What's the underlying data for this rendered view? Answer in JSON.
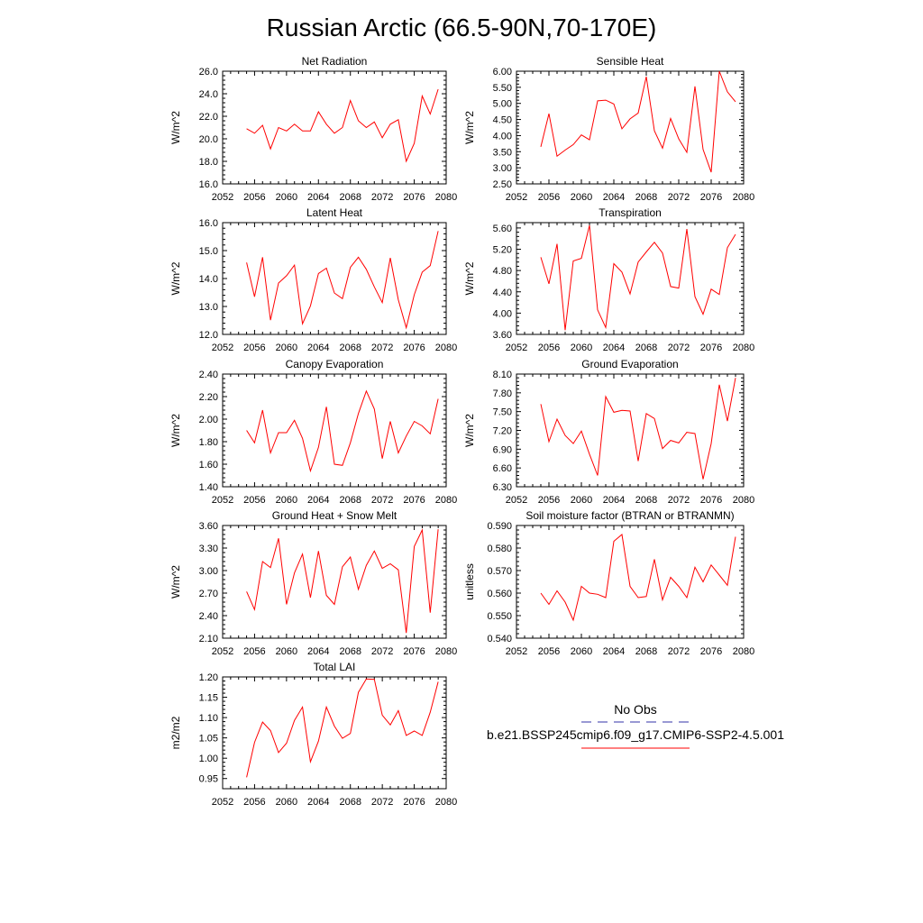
{
  "figure": {
    "title": "Russian Arctic (66.5-90N,70-170E)"
  },
  "colors": {
    "model_line": "#ff0000",
    "obs_line": "#3333aa",
    "axis": "#000000"
  },
  "legend": {
    "placement": "bottom-right",
    "entries": [
      {
        "label": "No Obs",
        "style": "dashed",
        "color": "#3333aa"
      },
      {
        "label": "b.e21.BSSP245cmip6.f09_g17.CMIP6-SSP2-4.5.001",
        "style": "solid",
        "color": "#ff0000"
      }
    ]
  },
  "chart_data": [
    {
      "type": "line",
      "title": "Net Radiation",
      "xlabel": "",
      "ylabel": "W/m^2",
      "xlim": [
        2052,
        2080
      ],
      "ylim": [
        16.0,
        26.0
      ],
      "xticks": [
        2052,
        2056,
        2060,
        2064,
        2068,
        2072,
        2076,
        2080
      ],
      "yticks": [
        16.0,
        18.0,
        20.0,
        22.0,
        24.0,
        26.0
      ],
      "ydecimals": 1,
      "x": [
        2055,
        2056,
        2057,
        2058,
        2059,
        2060,
        2061,
        2062,
        2063,
        2064,
        2065,
        2066,
        2067,
        2068,
        2069,
        2070,
        2071,
        2072,
        2073,
        2074,
        2075,
        2076,
        2077,
        2078,
        2079
      ],
      "series": [
        {
          "values": [
            20.9,
            20.5,
            21.2,
            19.1,
            21.0,
            20.7,
            21.3,
            20.7,
            20.7,
            22.4,
            21.3,
            20.5,
            21.0,
            23.4,
            21.6,
            21.0,
            21.5,
            20.1,
            21.3,
            21.7,
            18.0,
            19.6,
            23.8,
            22.2,
            24.4
          ]
        }
      ]
    },
    {
      "type": "line",
      "title": "Sensible Heat",
      "xlabel": "",
      "ylabel": "W/m^2",
      "xlim": [
        2052,
        2080
      ],
      "ylim": [
        2.5,
        6.0
      ],
      "xticks": [
        2052,
        2056,
        2060,
        2064,
        2068,
        2072,
        2076,
        2080
      ],
      "yticks": [
        2.5,
        3.0,
        3.5,
        4.0,
        4.5,
        5.0,
        5.5,
        6.0
      ],
      "ydecimals": 2,
      "x": [
        2055,
        2056,
        2057,
        2058,
        2059,
        2060,
        2061,
        2062,
        2063,
        2064,
        2065,
        2066,
        2067,
        2068,
        2069,
        2070,
        2071,
        2072,
        2073,
        2074,
        2075,
        2076,
        2077,
        2078,
        2079
      ],
      "series": [
        {
          "values": [
            3.65,
            4.68,
            3.36,
            3.55,
            3.72,
            4.02,
            3.87,
            5.08,
            5.1,
            4.98,
            4.21,
            4.52,
            4.7,
            5.83,
            4.15,
            3.61,
            4.53,
            3.9,
            3.48,
            5.53,
            3.57,
            2.86,
            6.0,
            5.36,
            5.05
          ]
        }
      ]
    },
    {
      "type": "line",
      "title": "Latent Heat",
      "xlabel": "",
      "ylabel": "W/m^2",
      "xlim": [
        2052,
        2080
      ],
      "ylim": [
        12.0,
        16.0
      ],
      "xticks": [
        2052,
        2056,
        2060,
        2064,
        2068,
        2072,
        2076,
        2080
      ],
      "yticks": [
        12.0,
        13.0,
        14.0,
        15.0,
        16.0
      ],
      "ydecimals": 1,
      "x": [
        2055,
        2056,
        2057,
        2058,
        2059,
        2060,
        2061,
        2062,
        2063,
        2064,
        2065,
        2066,
        2067,
        2068,
        2069,
        2070,
        2071,
        2072,
        2073,
        2074,
        2075,
        2076,
        2077,
        2078,
        2079
      ],
      "series": [
        {
          "values": [
            14.57,
            13.35,
            14.76,
            12.51,
            13.84,
            14.1,
            14.48,
            12.38,
            13.02,
            14.18,
            14.37,
            13.48,
            13.28,
            14.4,
            14.76,
            14.33,
            13.7,
            13.14,
            14.74,
            13.24,
            12.24,
            13.42,
            14.23,
            14.46,
            15.7
          ]
        }
      ]
    },
    {
      "type": "line",
      "title": "Transpiration",
      "xlabel": "",
      "ylabel": "W/m^2",
      "xlim": [
        2052,
        2080
      ],
      "ylim": [
        3.6,
        5.7
      ],
      "xticks": [
        2052,
        2056,
        2060,
        2064,
        2068,
        2072,
        2076,
        2080
      ],
      "yticks": [
        3.6,
        4.0,
        4.4,
        4.8,
        5.2,
        5.6
      ],
      "ydecimals": 2,
      "x": [
        2055,
        2056,
        2057,
        2058,
        2059,
        2060,
        2061,
        2062,
        2063,
        2064,
        2065,
        2066,
        2067,
        2068,
        2069,
        2070,
        2071,
        2072,
        2073,
        2074,
        2075,
        2076,
        2077,
        2078,
        2079
      ],
      "series": [
        {
          "values": [
            5.05,
            4.55,
            5.3,
            3.68,
            4.98,
            5.03,
            5.65,
            4.06,
            3.73,
            4.93,
            4.77,
            4.36,
            4.96,
            5.15,
            5.33,
            5.13,
            4.5,
            4.47,
            5.58,
            4.31,
            3.98,
            4.45,
            4.35,
            5.23,
            5.48
          ]
        }
      ]
    },
    {
      "type": "line",
      "title": "Canopy Evaporation",
      "xlabel": "",
      "ylabel": "W/m^2",
      "xlim": [
        2052,
        2080
      ],
      "ylim": [
        1.4,
        2.4
      ],
      "xticks": [
        2052,
        2056,
        2060,
        2064,
        2068,
        2072,
        2076,
        2080
      ],
      "yticks": [
        1.4,
        1.6,
        1.8,
        2.0,
        2.2,
        2.4
      ],
      "ydecimals": 2,
      "x": [
        2055,
        2056,
        2057,
        2058,
        2059,
        2060,
        2061,
        2062,
        2063,
        2064,
        2065,
        2066,
        2067,
        2068,
        2069,
        2070,
        2071,
        2072,
        2073,
        2074,
        2075,
        2076,
        2077,
        2078,
        2079
      ],
      "series": [
        {
          "values": [
            1.9,
            1.79,
            2.08,
            1.7,
            1.88,
            1.88,
            1.99,
            1.83,
            1.54,
            1.75,
            2.11,
            1.6,
            1.59,
            1.79,
            2.05,
            2.25,
            2.09,
            1.65,
            1.98,
            1.7,
            1.85,
            1.98,
            1.94,
            1.87,
            2.18
          ]
        }
      ]
    },
    {
      "type": "line",
      "title": "Ground Evaporation",
      "xlabel": "",
      "ylabel": "W/m^2",
      "xlim": [
        2052,
        2080
      ],
      "ylim": [
        6.3,
        8.1
      ],
      "xticks": [
        2052,
        2056,
        2060,
        2064,
        2068,
        2072,
        2076,
        2080
      ],
      "yticks": [
        6.3,
        6.6,
        6.9,
        7.2,
        7.5,
        7.8,
        8.1
      ],
      "ydecimals": 2,
      "x": [
        2055,
        2056,
        2057,
        2058,
        2059,
        2060,
        2061,
        2062,
        2063,
        2064,
        2065,
        2066,
        2067,
        2068,
        2069,
        2070,
        2071,
        2072,
        2073,
        2074,
        2075,
        2076,
        2077,
        2078,
        2079
      ],
      "series": [
        {
          "values": [
            7.62,
            7.02,
            7.38,
            7.12,
            6.99,
            7.19,
            6.82,
            6.48,
            7.74,
            7.49,
            7.52,
            7.51,
            6.71,
            7.47,
            7.39,
            6.91,
            7.04,
            7.0,
            7.17,
            7.15,
            6.42,
            6.99,
            7.93,
            7.35,
            8.04
          ]
        }
      ]
    },
    {
      "type": "line",
      "title": "Ground Heat + Snow Melt",
      "xlabel": "",
      "ylabel": "W/m^2",
      "xlim": [
        2052,
        2080
      ],
      "ylim": [
        2.1,
        3.6
      ],
      "xticks": [
        2052,
        2056,
        2060,
        2064,
        2068,
        2072,
        2076,
        2080
      ],
      "yticks": [
        2.1,
        2.4,
        2.7,
        3.0,
        3.3,
        3.6
      ],
      "ydecimals": 2,
      "x": [
        2055,
        2056,
        2057,
        2058,
        2059,
        2060,
        2061,
        2062,
        2063,
        2064,
        2065,
        2066,
        2067,
        2068,
        2069,
        2070,
        2071,
        2072,
        2073,
        2074,
        2075,
        2076,
        2077,
        2078,
        2079
      ],
      "series": [
        {
          "values": [
            2.72,
            2.48,
            3.12,
            3.04,
            3.43,
            2.55,
            2.97,
            3.22,
            2.64,
            3.26,
            2.67,
            2.55,
            3.05,
            3.18,
            2.75,
            3.07,
            3.26,
            3.03,
            3.09,
            3.01,
            2.17,
            3.32,
            3.54,
            2.44,
            3.55
          ]
        }
      ]
    },
    {
      "type": "line",
      "title": "Soil moisture factor (BTRAN or BTRANMN)",
      "xlabel": "",
      "ylabel": "unitless",
      "xlim": [
        2052,
        2080
      ],
      "ylim": [
        0.54,
        0.59
      ],
      "xticks": [
        2052,
        2056,
        2060,
        2064,
        2068,
        2072,
        2076,
        2080
      ],
      "yticks": [
        0.54,
        0.55,
        0.56,
        0.57,
        0.58,
        0.59
      ],
      "ydecimals": 3,
      "x": [
        2055,
        2056,
        2057,
        2058,
        2059,
        2060,
        2061,
        2062,
        2063,
        2064,
        2065,
        2066,
        2067,
        2068,
        2069,
        2070,
        2071,
        2072,
        2073,
        2074,
        2075,
        2076,
        2077,
        2078,
        2079
      ],
      "series": [
        {
          "values": [
            0.56,
            0.555,
            0.561,
            0.556,
            0.548,
            0.563,
            0.56,
            0.5595,
            0.558,
            0.583,
            0.586,
            0.563,
            0.558,
            0.5585,
            0.575,
            0.557,
            0.567,
            0.563,
            0.558,
            0.5715,
            0.565,
            0.5725,
            0.568,
            0.5635,
            0.585
          ]
        }
      ]
    },
    {
      "type": "line",
      "title": "Total LAI",
      "xlabel": "",
      "ylabel": "m2/m2",
      "xlim": [
        2052,
        2080
      ],
      "ylim": [
        0.925,
        1.2
      ],
      "xticks": [
        2052,
        2056,
        2060,
        2064,
        2068,
        2072,
        2076,
        2080
      ],
      "yticks": [
        0.95,
        1.0,
        1.05,
        1.1,
        1.15,
        1.2
      ],
      "ydecimals": 2,
      "x": [
        2055,
        2056,
        2057,
        2058,
        2059,
        2060,
        2061,
        2062,
        2063,
        2064,
        2065,
        2066,
        2067,
        2068,
        2069,
        2070,
        2071,
        2072,
        2073,
        2074,
        2075,
        2076,
        2077,
        2078,
        2079
      ],
      "series": [
        {
          "values": [
            0.953,
            1.039,
            1.089,
            1.068,
            1.014,
            1.037,
            1.093,
            1.126,
            0.991,
            1.042,
            1.126,
            1.079,
            1.049,
            1.061,
            1.162,
            1.195,
            1.194,
            1.106,
            1.082,
            1.117,
            1.056,
            1.067,
            1.056,
            1.113,
            1.188
          ]
        }
      ]
    }
  ]
}
